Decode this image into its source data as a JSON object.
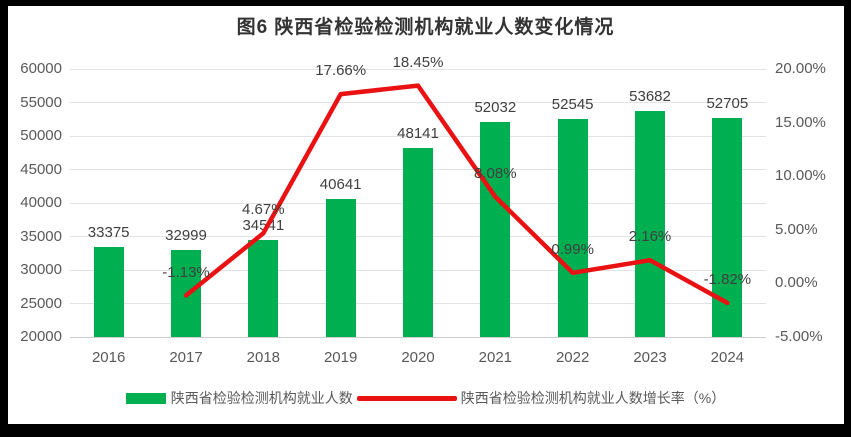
{
  "title": "图6 陕西省检验检测机构就业人数变化情况",
  "colors": {
    "bar": "#00AF50",
    "line": "#E91111",
    "grid": "#E3E3E3",
    "axis_text": "#595959",
    "label_text": "#3F3F3F",
    "frame": "#000000"
  },
  "chart_data": {
    "type": "bar+line",
    "title": "图6 陕西省检验检测机构就业人数变化情况",
    "categories": [
      "2016",
      "2017",
      "2018",
      "2019",
      "2020",
      "2021",
      "2022",
      "2023",
      "2024"
    ],
    "series": [
      {
        "name": "陕西省检验检测机构就业人数",
        "type": "bar",
        "axis": "left",
        "color": "#00AF50",
        "values": [
          33375,
          32999,
          34541,
          40641,
          48141,
          52032,
          52545,
          53682,
          52705
        ],
        "labels": [
          "33375",
          "32999",
          "34541",
          "40641",
          "48141",
          "52032",
          "52545",
          "53682",
          "52705"
        ]
      },
      {
        "name": "陕西省检验检测机构就业人数增长率（%）",
        "type": "line",
        "axis": "right",
        "color": "#E91111",
        "values": [
          null,
          -1.13,
          4.67,
          17.66,
          18.45,
          8.08,
          0.99,
          2.16,
          -1.82
        ],
        "labels": [
          null,
          "-1.13%",
          "4.67%",
          "17.66%",
          "18.45%",
          "8.08%",
          "0.99%",
          "2.16%",
          "-1.82%"
        ]
      }
    ],
    "left_axis": {
      "min": 20000,
      "max": 60000,
      "step": 5000,
      "tick_labels": [
        "60000",
        "55000",
        "50000",
        "45000",
        "40000",
        "35000",
        "30000",
        "25000",
        "20000"
      ]
    },
    "right_axis": {
      "min": -5,
      "max": 20,
      "step": 5,
      "tick_labels": [
        "20.00%",
        "15.00%",
        "10.00%",
        "5.00%",
        "0.00%",
        "-5.00%"
      ]
    },
    "grid": true,
    "legend_position": "bottom"
  },
  "legend": {
    "items": [
      {
        "label": "陕西省检验检测机构就业人数",
        "marker": "bar-swatch",
        "color": "#00AF50"
      },
      {
        "label": "陕西省检验检测机构就业人数增长率（%）",
        "marker": "line-swatch",
        "color": "#E91111"
      }
    ]
  }
}
